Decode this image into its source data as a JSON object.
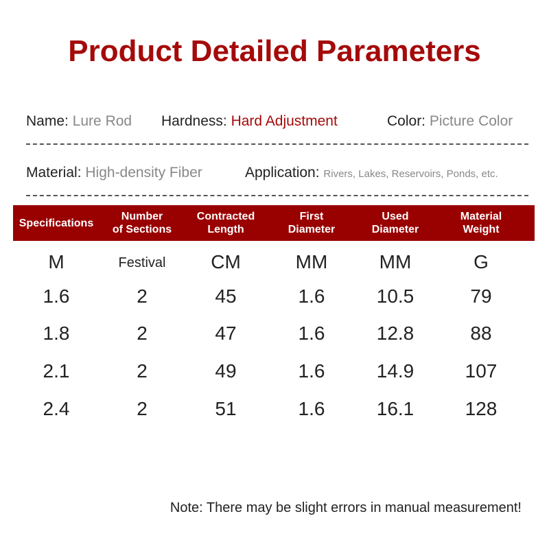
{
  "title": "Product Detailed Parameters",
  "info": {
    "name_label": "Name:",
    "name_value": "Lure Rod",
    "hardness_label": "Hardness:",
    "hardness_value": "Hard Adjustment",
    "color_label": "Color:",
    "color_value": "Picture Color",
    "material_label": "Material:",
    "material_value": "High-density Fiber",
    "application_label": "Application:",
    "application_value": "Rivers, Lakes, Reservoirs, Ponds, etc."
  },
  "table": {
    "headers": [
      [
        "Specifications",
        ""
      ],
      [
        "Number",
        "of Sections"
      ],
      [
        "Contracted",
        "Length"
      ],
      [
        "First",
        "Diameter"
      ],
      [
        "Used",
        "Diameter"
      ],
      [
        "Material",
        "Weight"
      ]
    ],
    "rows": [
      [
        "M",
        "Festival",
        "CM",
        "MM",
        "MM",
        "G"
      ],
      [
        "1.6",
        "2",
        "45",
        "1.6",
        "10.5",
        "79"
      ],
      [
        "1.8",
        "2",
        "47",
        "1.6",
        "12.8",
        "88"
      ],
      [
        "2.1",
        "2",
        "49",
        "1.6",
        "14.9",
        "107"
      ],
      [
        "2.4",
        "2",
        "51",
        "1.6",
        "16.1",
        "128"
      ]
    ]
  },
  "note": "Note: There may be slight errors in manual measurement!",
  "colors": {
    "accent": "#990000"
  }
}
